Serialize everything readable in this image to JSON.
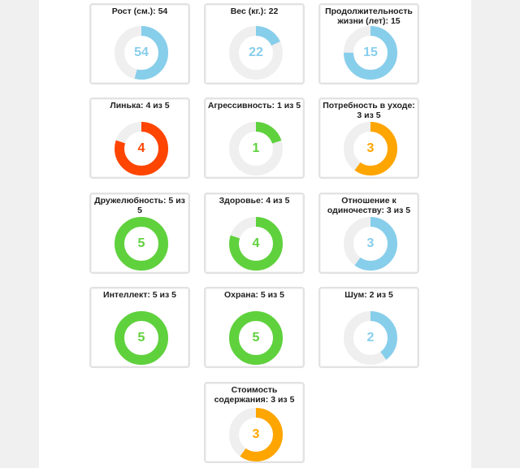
{
  "colors": {
    "blue": "#87CEEB",
    "red": "#FF4500",
    "green": "#5FD13D",
    "orange": "#FFA500",
    "track": "#EFEFEF"
  },
  "cards": [
    {
      "title": "Рост (см.): 54",
      "value": "54",
      "fraction": 0.54,
      "color": "#87CEEB"
    },
    {
      "title": "Вес (кг.): 22",
      "value": "22",
      "fraction": 0.18,
      "color": "#87CEEB"
    },
    {
      "title": "Продолжительность жизни (лет): 15",
      "value": "15",
      "fraction": 0.75,
      "color": "#87CEEB"
    },
    {
      "title": "Линька: 4 из 5",
      "value": "4",
      "fraction": 0.8,
      "color": "#FF4500"
    },
    {
      "title": "Агрессивность: 1 из 5",
      "value": "1",
      "fraction": 0.2,
      "color": "#5FD13D"
    },
    {
      "title": "Потребность в уходе: 3 из 5",
      "value": "3",
      "fraction": 0.6,
      "color": "#FFA500"
    },
    {
      "title": "Дружелюбность: 5 из 5",
      "value": "5",
      "fraction": 1.0,
      "color": "#5FD13D"
    },
    {
      "title": "Здоровье: 4 из 5",
      "value": "4",
      "fraction": 0.8,
      "color": "#5FD13D"
    },
    {
      "title": "Отношение к одиночеству: 3 из 5",
      "value": "3",
      "fraction": 0.6,
      "color": "#87CEEB"
    },
    {
      "title": "Интеллект: 5 из 5",
      "value": "5",
      "fraction": 1.0,
      "color": "#5FD13D"
    },
    {
      "title": "Охрана: 5 из 5",
      "value": "5",
      "fraction": 1.0,
      "color": "#5FD13D"
    },
    {
      "title": "Шум: 2 из 5",
      "value": "2",
      "fraction": 0.4,
      "color": "#87CEEB"
    },
    {
      "title": "Стоимость содержания: 3 из 5",
      "value": "3",
      "fraction": 0.6,
      "color": "#FFA500"
    }
  ]
}
